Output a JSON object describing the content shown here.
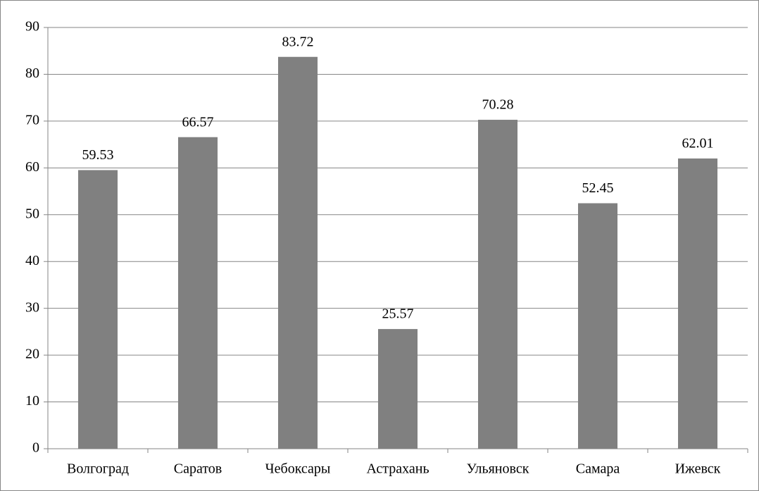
{
  "chart_data": {
    "type": "bar",
    "categories": [
      "Волгоград",
      "Саратов",
      "Чебоксары",
      "Астрахань",
      "Ульяновск",
      "Самара",
      "Ижевск"
    ],
    "values": [
      59.53,
      66.57,
      83.72,
      25.57,
      70.28,
      52.45,
      62.01
    ],
    "color": "#808080",
    "ylim": [
      0,
      90
    ],
    "yticks": [
      0,
      10,
      20,
      30,
      40,
      50,
      60,
      70,
      80,
      90
    ],
    "grid": true
  }
}
